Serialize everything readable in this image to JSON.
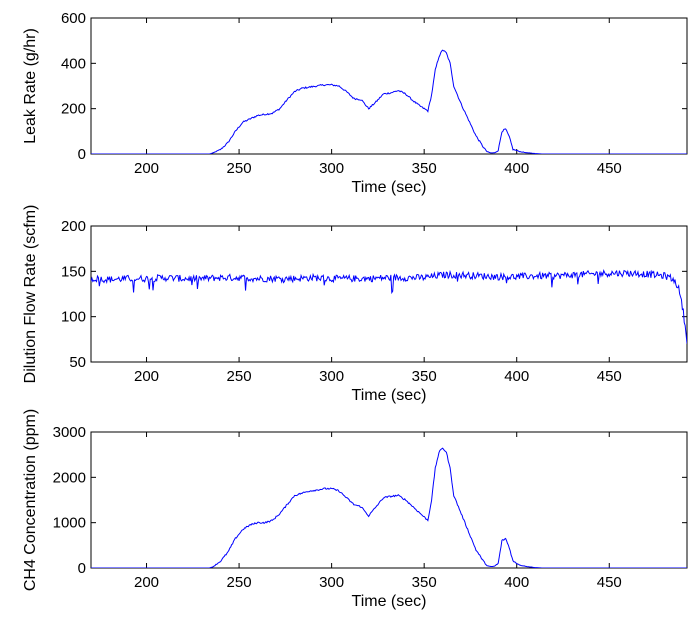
{
  "chart_data": [
    {
      "type": "line",
      "xlabel": "Time (sec)",
      "ylabel": "Leak Rate (g/hr)",
      "xlim": [
        170,
        492
      ],
      "ylim": [
        0,
        600
      ],
      "xticks": [
        200,
        250,
        300,
        350,
        400,
        450
      ],
      "yticks": [
        0,
        200,
        400,
        600
      ],
      "grid": false,
      "series": [
        {
          "color": "#0000ff",
          "x": [
            170,
            234,
            236,
            240,
            244,
            248,
            252,
            256,
            260,
            264,
            268,
            272,
            276,
            280,
            284,
            288,
            292,
            296,
            300,
            304,
            308,
            312,
            316,
            320,
            324,
            328,
            332,
            336,
            340,
            344,
            348,
            352,
            354,
            356,
            358,
            360,
            362,
            364,
            366,
            370,
            374,
            378,
            382,
            384,
            386,
            388,
            390,
            392,
            394,
            396,
            398,
            402,
            406,
            410,
            414,
            492
          ],
          "y": [
            0,
            0,
            5,
            20,
            50,
            100,
            140,
            155,
            170,
            175,
            180,
            200,
            240,
            275,
            290,
            295,
            300,
            305,
            305,
            300,
            275,
            245,
            240,
            200,
            230,
            265,
            270,
            280,
            265,
            235,
            210,
            190,
            260,
            370,
            430,
            460,
            445,
            400,
            300,
            220,
            150,
            80,
            30,
            10,
            5,
            5,
            15,
            100,
            110,
            75,
            20,
            10,
            5,
            2,
            0,
            0
          ]
        }
      ]
    },
    {
      "type": "line",
      "xlabel": "Time (sec)",
      "ylabel": "Dilution Flow Rate (scfm)",
      "xlim": [
        170,
        492
      ],
      "ylim": [
        50,
        200
      ],
      "xticks": [
        200,
        250,
        300,
        350,
        400,
        450
      ],
      "yticks": [
        50,
        100,
        150,
        200
      ],
      "grid": false,
      "series": [
        {
          "color": "#0000ff",
          "x": [
            170,
            180,
            190,
            200,
            210,
            220,
            230,
            240,
            250,
            260,
            270,
            280,
            290,
            300,
            310,
            320,
            330,
            340,
            350,
            360,
            370,
            380,
            390,
            400,
            410,
            420,
            430,
            440,
            450,
            460,
            470,
            475,
            480,
            483,
            486,
            488,
            490,
            492
          ],
          "y": [
            142,
            141,
            142,
            142,
            143,
            142,
            142,
            143,
            143,
            142,
            142,
            142,
            143,
            142,
            142,
            142,
            143,
            143,
            143,
            146,
            146,
            145,
            144,
            144,
            145,
            145,
            146,
            147,
            148,
            148,
            147,
            146,
            145,
            143,
            138,
            128,
            105,
            74
          ]
        }
      ]
    },
    {
      "type": "line",
      "xlabel": "Time (sec)",
      "ylabel": "CH4 Concentration (ppm)",
      "xlim": [
        170,
        492
      ],
      "ylim": [
        0,
        3000
      ],
      "xticks": [
        200,
        250,
        300,
        350,
        400,
        450
      ],
      "yticks": [
        0,
        1000,
        2000,
        3000
      ],
      "grid": false,
      "series": [
        {
          "color": "#0000ff",
          "x": [
            170,
            234,
            236,
            240,
            244,
            248,
            252,
            256,
            260,
            264,
            268,
            272,
            276,
            280,
            284,
            288,
            292,
            296,
            300,
            304,
            308,
            312,
            316,
            320,
            324,
            328,
            332,
            336,
            340,
            344,
            348,
            352,
            354,
            356,
            358,
            360,
            362,
            364,
            366,
            370,
            374,
            378,
            382,
            384,
            386,
            388,
            390,
            392,
            394,
            396,
            398,
            402,
            406,
            410,
            414,
            492
          ],
          "y": [
            0,
            0,
            30,
            150,
            350,
            650,
            850,
            950,
            1000,
            1000,
            1050,
            1200,
            1400,
            1600,
            1650,
            1700,
            1720,
            1750,
            1750,
            1700,
            1550,
            1400,
            1350,
            1150,
            1350,
            1550,
            1580,
            1600,
            1500,
            1350,
            1200,
            1050,
            1500,
            2200,
            2550,
            2650,
            2550,
            2200,
            1600,
            1200,
            800,
            400,
            150,
            50,
            30,
            40,
            100,
            600,
            650,
            450,
            150,
            60,
            30,
            10,
            0,
            0
          ]
        }
      ]
    }
  ]
}
